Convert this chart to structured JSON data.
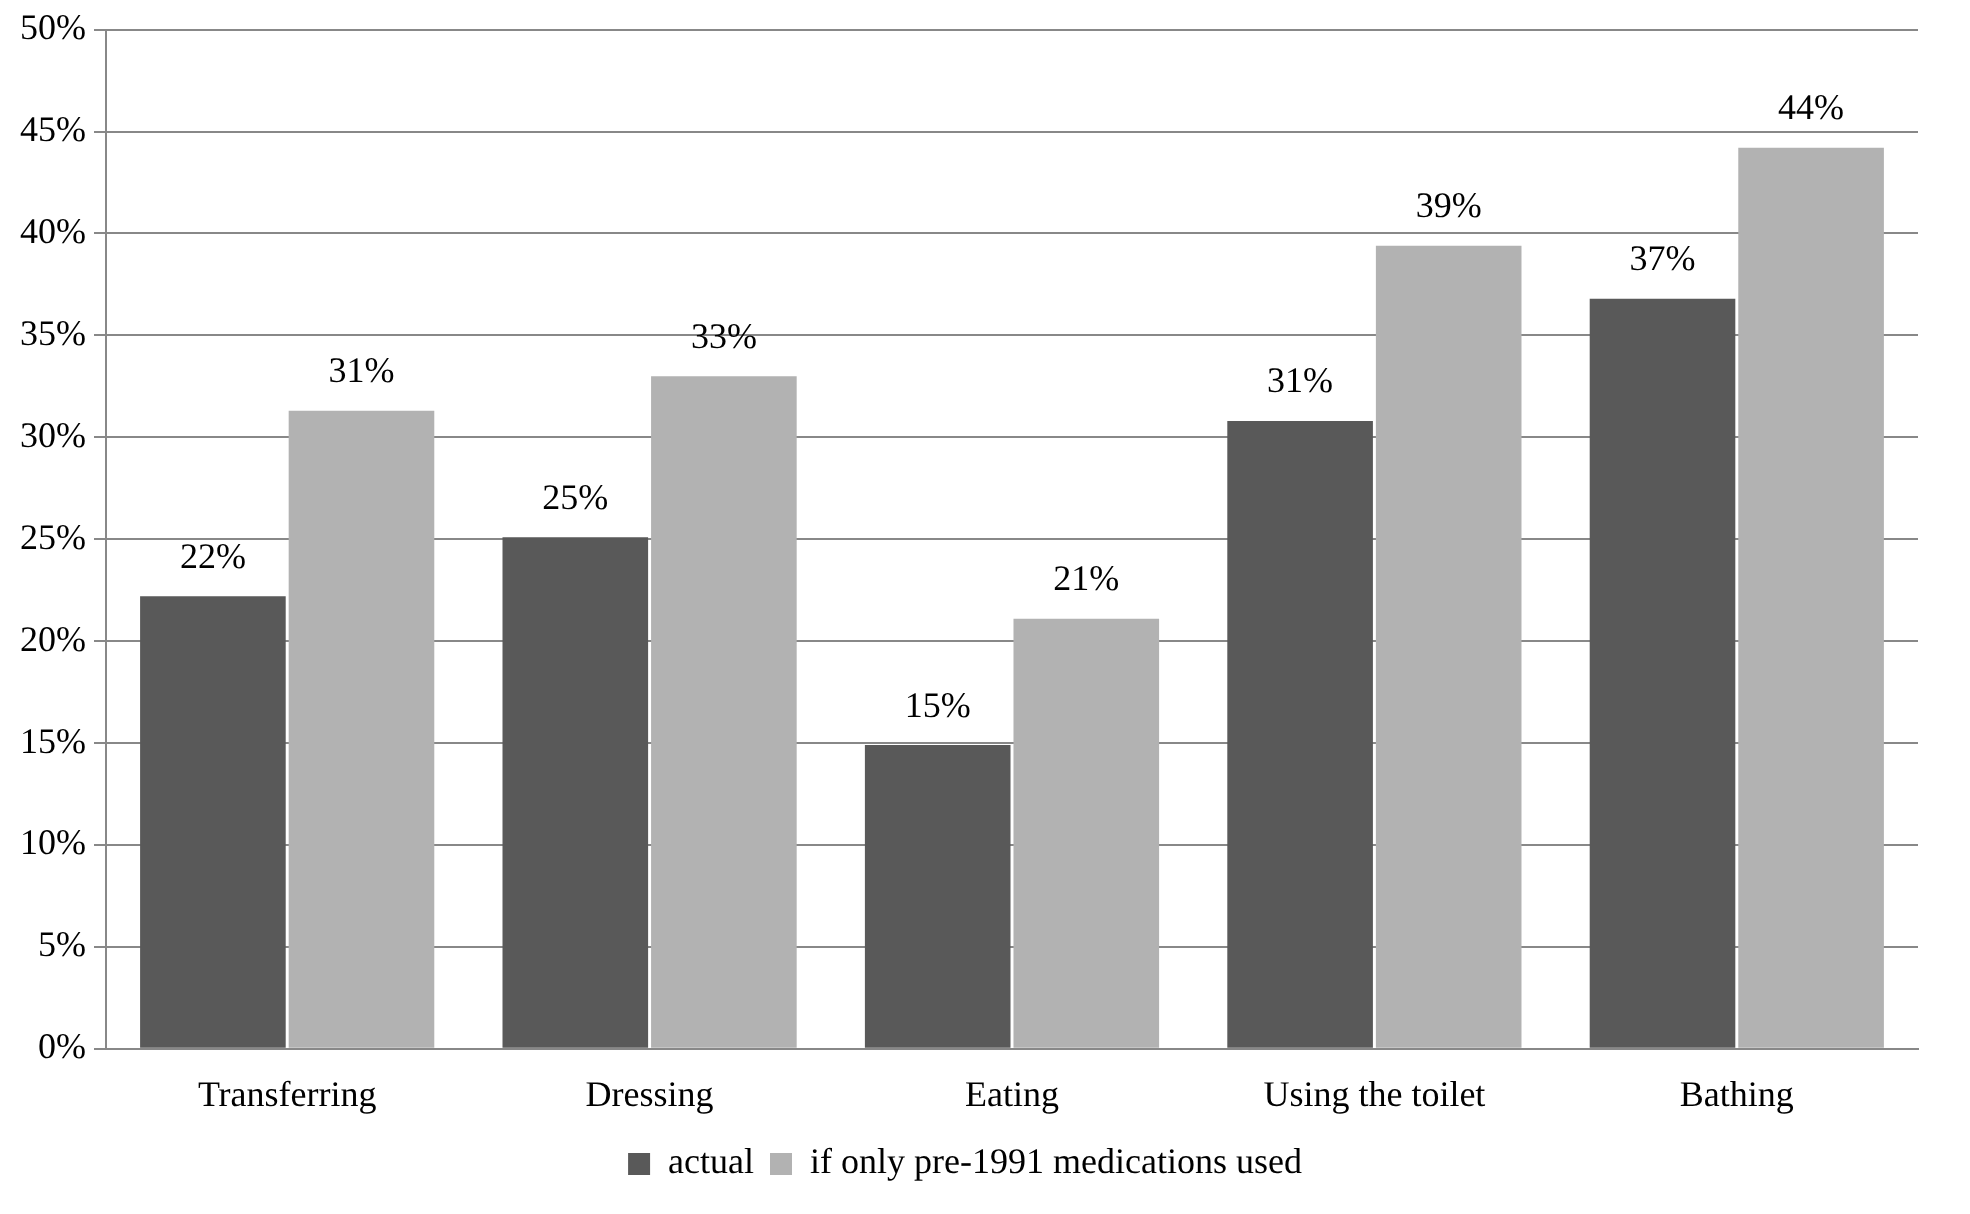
{
  "chart_data": {
    "type": "bar",
    "categories": [
      "Transferring",
      "Dressing",
      "Eating",
      "Using the toilet",
      "Bathing"
    ],
    "series": [
      {
        "name": "actual",
        "color": "#595959",
        "values": [
          22.2,
          25.1,
          14.9,
          30.8,
          36.8
        ],
        "value_labels": [
          "22%",
          "25%",
          "15%",
          "31%",
          "37%"
        ]
      },
      {
        "name": "if only pre-1991 medications used",
        "color": "#b2b2b2",
        "values": [
          31.3,
          33.0,
          21.1,
          39.4,
          44.2
        ],
        "value_labels": [
          "31%",
          "33%",
          "21%",
          "39%",
          "44%"
        ]
      }
    ],
    "ylim": [
      0,
      50
    ],
    "yticks": [
      {
        "value": 0,
        "label": "0%"
      },
      {
        "value": 5,
        "label": "5%"
      },
      {
        "value": 10,
        "label": "10%"
      },
      {
        "value": 15,
        "label": "15%"
      },
      {
        "value": 20,
        "label": "20%"
      },
      {
        "value": 25,
        "label": "25%"
      },
      {
        "value": 30,
        "label": "30%"
      },
      {
        "value": 35,
        "label": "35%"
      },
      {
        "value": 40,
        "label": "40%"
      },
      {
        "value": 45,
        "label": "45%"
      },
      {
        "value": 50,
        "label": "50%"
      }
    ],
    "grid": "y",
    "legend": "bottom"
  }
}
